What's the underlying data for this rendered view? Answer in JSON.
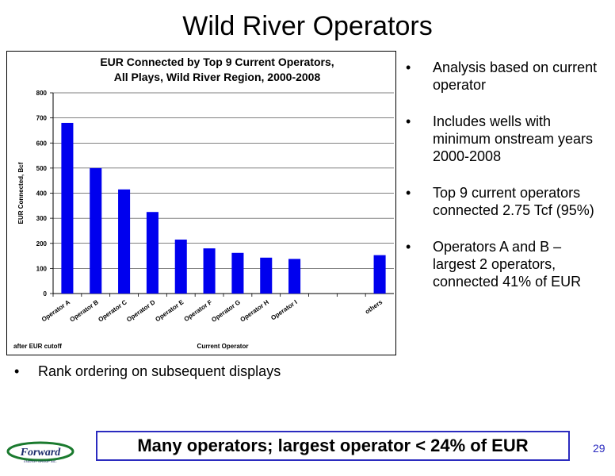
{
  "slide": {
    "title": "Wild River Operators",
    "page_number": "29",
    "callout": "Many operators; largest operator < 24% of EUR",
    "bottom_bullet": "Rank ordering on subsequent displays",
    "bullet_symbol": "•",
    "right_bullets": [
      "Analysis based on current operator",
      "Includes wells with minimum onstream years 2000-2008",
      "Top 9 current operators connected 2.75 Tcf (95%)",
      "Operators A and B – largest 2 operators, connected 41% of EUR"
    ],
    "logo": {
      "text": "Forward",
      "subtext": "ENERGY GROUP INC.",
      "color": "#1a7a2e",
      "text_color": "#1b2a6b"
    }
  },
  "chart_data": {
    "type": "bar",
    "title_lines": [
      "EUR Connected by Top 9 Current Operators,",
      "All Plays, Wild River Region, 2000-2008"
    ],
    "xlabel": "Current Operator",
    "ylabel": "EUR Connected, Bcf",
    "note": "after EUR cutoff",
    "categories": [
      "Operator A",
      "Operator B",
      "Operator C",
      "Operator D",
      "Operator E",
      "Operator F",
      "Operator G",
      "Operator H",
      "Operator I",
      "",
      "",
      "others"
    ],
    "values": [
      680,
      500,
      415,
      325,
      215,
      180,
      162,
      143,
      138,
      null,
      null,
      153
    ],
    "ylim": [
      0,
      800
    ],
    "yticks": [
      0,
      100,
      200,
      300,
      400,
      500,
      600,
      700,
      800
    ],
    "bar_color": "#0000ee",
    "grid": true
  }
}
